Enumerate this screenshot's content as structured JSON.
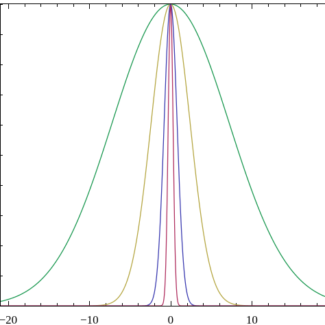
{
  "chart_data": {
    "type": "line",
    "title": "",
    "xlabel": "",
    "ylabel": "",
    "xlim": [
      -21,
      19
    ],
    "ylim": [
      0,
      1
    ],
    "grid": false,
    "legend": "none",
    "x_ticks": [
      {
        "value": -20,
        "label": "−20"
      },
      {
        "value": -10,
        "label": "−10"
      },
      {
        "value": 0,
        "label": "0"
      },
      {
        "value": 10,
        "label": "10"
      }
    ],
    "minor_tick_step": 2,
    "y_minor_tick_step": 0.1,
    "series": [
      {
        "color": "#1a9850",
        "peak_x": 0,
        "peak_y": 1,
        "sigma": 7.2
      },
      {
        "color": "#b5a642",
        "peak_x": 0,
        "peak_y": 1,
        "sigma": 2.4
      },
      {
        "color": "#3a3ab0",
        "peak_x": 0,
        "peak_y": 1,
        "sigma": 0.8
      },
      {
        "color": "#b03060",
        "peak_x": 0,
        "peak_y": 1,
        "sigma": 0.3
      }
    ]
  }
}
